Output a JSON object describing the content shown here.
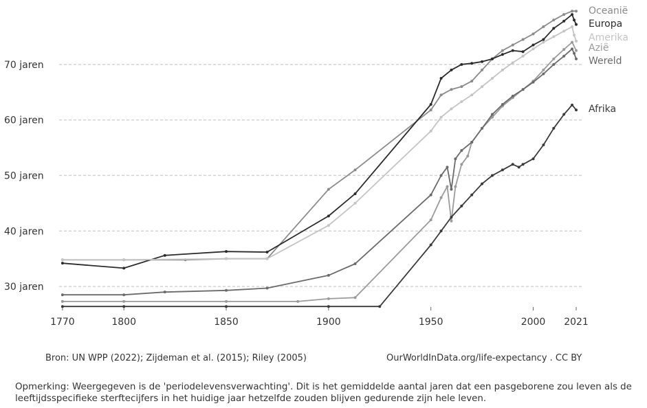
{
  "chart_data": {
    "type": "line",
    "title": "",
    "xlabel": "",
    "ylabel": "",
    "xlim": [
      1765,
      2022
    ],
    "ylim": [
      26.3,
      80
    ],
    "x_ticks": [
      1770,
      1800,
      1850,
      1900,
      1950,
      2000,
      2021
    ],
    "y_ticks": [
      {
        "value": 30,
        "label": "30 jaren"
      },
      {
        "value": 40,
        "label": "40 jaren"
      },
      {
        "value": 50,
        "label": "50 jaren"
      },
      {
        "value": 60,
        "label": "60 jaren"
      },
      {
        "value": 70,
        "label": "70 jaren"
      }
    ],
    "grid": "horizontal dotted",
    "series": [
      {
        "name": "Oceanië",
        "color": "#8a8a8a",
        "points": [
          [
            1770,
            34.8
          ],
          [
            1800,
            34.8
          ],
          [
            1830,
            34.8
          ],
          [
            1850,
            35.0
          ],
          [
            1870,
            35.0
          ],
          [
            1900,
            47.5
          ],
          [
            1913,
            51.0
          ],
          [
            1950,
            61.8
          ],
          [
            1955,
            64.5
          ],
          [
            1960,
            65.5
          ],
          [
            1965,
            66.0
          ],
          [
            1970,
            67.0
          ],
          [
            1975,
            69.0
          ],
          [
            1980,
            71.0
          ],
          [
            1985,
            72.5
          ],
          [
            1990,
            73.5
          ],
          [
            1995,
            74.5
          ],
          [
            2000,
            75.5
          ],
          [
            2005,
            76.8
          ],
          [
            2010,
            78.0
          ],
          [
            2015,
            79.0
          ],
          [
            2019,
            79.6
          ],
          [
            2021,
            79.6
          ]
        ]
      },
      {
        "name": "Europa",
        "color": "#2b2b2b",
        "points": [
          [
            1770,
            34.2
          ],
          [
            1800,
            33.3
          ],
          [
            1820,
            35.6
          ],
          [
            1850,
            36.3
          ],
          [
            1870,
            36.2
          ],
          [
            1900,
            42.7
          ],
          [
            1913,
            46.7
          ],
          [
            1950,
            62.8
          ],
          [
            1955,
            67.5
          ],
          [
            1960,
            69.0
          ],
          [
            1965,
            70.0
          ],
          [
            1970,
            70.2
          ],
          [
            1975,
            70.5
          ],
          [
            1980,
            71.0
          ],
          [
            1985,
            71.8
          ],
          [
            1990,
            72.5
          ],
          [
            1995,
            72.3
          ],
          [
            2000,
            73.5
          ],
          [
            2005,
            74.5
          ],
          [
            2010,
            76.5
          ],
          [
            2015,
            77.8
          ],
          [
            2019,
            79.0
          ],
          [
            2020,
            78.0
          ],
          [
            2021,
            77.2
          ]
        ]
      },
      {
        "name": "Amerika",
        "color": "#c4c4c4",
        "points": [
          [
            1770,
            34.8
          ],
          [
            1800,
            34.8
          ],
          [
            1850,
            35.0
          ],
          [
            1870,
            35.0
          ],
          [
            1900,
            41.0
          ],
          [
            1913,
            45.0
          ],
          [
            1950,
            58.0
          ],
          [
            1955,
            60.5
          ],
          [
            1960,
            62.0
          ],
          [
            1965,
            63.3
          ],
          [
            1970,
            64.5
          ],
          [
            1975,
            66.0
          ],
          [
            1980,
            67.5
          ],
          [
            1985,
            69.0
          ],
          [
            1990,
            70.3
          ],
          [
            1995,
            71.5
          ],
          [
            2000,
            72.8
          ],
          [
            2005,
            74.0
          ],
          [
            2010,
            75.0
          ],
          [
            2015,
            76.0
          ],
          [
            2019,
            76.8
          ],
          [
            2020,
            75.3
          ],
          [
            2021,
            74.2
          ]
        ]
      },
      {
        "name": "Azië",
        "color": "#9a9a9a",
        "points": [
          [
            1770,
            27.3
          ],
          [
            1800,
            27.3
          ],
          [
            1850,
            27.3
          ],
          [
            1885,
            27.3
          ],
          [
            1900,
            27.8
          ],
          [
            1913,
            28.0
          ],
          [
            1950,
            42.0
          ],
          [
            1955,
            46.0
          ],
          [
            1958,
            48.0
          ],
          [
            1960,
            41.8
          ],
          [
            1962,
            48.0
          ],
          [
            1965,
            52.0
          ],
          [
            1968,
            53.5
          ],
          [
            1970,
            56.0
          ],
          [
            1975,
            58.5
          ],
          [
            1980,
            60.5
          ],
          [
            1985,
            62.5
          ],
          [
            1990,
            64.0
          ],
          [
            1995,
            65.5
          ],
          [
            2000,
            67.0
          ],
          [
            2005,
            69.0
          ],
          [
            2010,
            71.0
          ],
          [
            2015,
            72.7
          ],
          [
            2019,
            74.0
          ],
          [
            2021,
            72.5
          ]
        ]
      },
      {
        "name": "Wereld",
        "color": "#6a6a6a",
        "points": [
          [
            1770,
            28.5
          ],
          [
            1800,
            28.5
          ],
          [
            1820,
            29.0
          ],
          [
            1850,
            29.3
          ],
          [
            1870,
            29.7
          ],
          [
            1900,
            32.0
          ],
          [
            1913,
            34.1
          ],
          [
            1950,
            46.5
          ],
          [
            1955,
            50.0
          ],
          [
            1958,
            51.5
          ],
          [
            1960,
            47.5
          ],
          [
            1962,
            53.0
          ],
          [
            1965,
            54.5
          ],
          [
            1970,
            56.0
          ],
          [
            1975,
            58.5
          ],
          [
            1980,
            61.0
          ],
          [
            1985,
            62.8
          ],
          [
            1990,
            64.3
          ],
          [
            1995,
            65.5
          ],
          [
            2000,
            66.8
          ],
          [
            2005,
            68.3
          ],
          [
            2010,
            70.0
          ],
          [
            2015,
            71.5
          ],
          [
            2019,
            72.8
          ],
          [
            2020,
            72.0
          ],
          [
            2021,
            71.0
          ]
        ]
      },
      {
        "name": "Afrika",
        "color": "#3a3a3a",
        "points": [
          [
            1770,
            26.4
          ],
          [
            1800,
            26.4
          ],
          [
            1850,
            26.4
          ],
          [
            1900,
            26.4
          ],
          [
            1925,
            26.4
          ],
          [
            1950,
            37.5
          ],
          [
            1955,
            40.0
          ],
          [
            1960,
            42.5
          ],
          [
            1965,
            44.5
          ],
          [
            1970,
            46.5
          ],
          [
            1975,
            48.5
          ],
          [
            1980,
            50.0
          ],
          [
            1985,
            51.0
          ],
          [
            1990,
            52.0
          ],
          [
            1993,
            51.5
          ],
          [
            1995,
            52.0
          ],
          [
            2000,
            53.0
          ],
          [
            2005,
            55.5
          ],
          [
            2010,
            58.5
          ],
          [
            2015,
            61.0
          ],
          [
            2019,
            62.7
          ],
          [
            2021,
            61.8
          ]
        ]
      }
    ]
  },
  "source_left": "Bron: UN WPP (2022); Zijdeman et al. (2015); Riley (2005)",
  "source_right": "OurWorldInData.org/life-expectancy . CC BY",
  "note": "Opmerking: Weergegeven is de 'periodelevensverwachting'. Dit is het gemiddelde aantal jaren dat een pasgeborene zou leven als de leeftijdsspecifieke sterftecijfers in het huidige jaar hetzelfde zouden blijven gedurende zijn hele leven."
}
